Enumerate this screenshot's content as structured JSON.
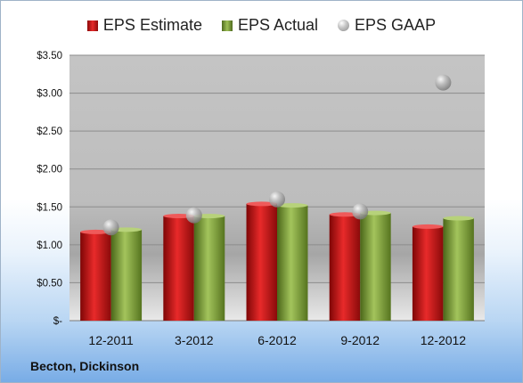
{
  "company": "Becton, Dickinson",
  "colors": {
    "estimate": "#c41a1a",
    "actual": "#7b9c3a",
    "gaap": "#a9a9a9"
  },
  "chart_data": {
    "type": "bar",
    "title": "",
    "xlabel": "",
    "ylabel": "",
    "categories": [
      "12-2011",
      "3-2012",
      "6-2012",
      "9-2012",
      "12-2012"
    ],
    "series": [
      {
        "name": "EPS Estimate",
        "kind": "bar",
        "values": [
          1.17,
          1.38,
          1.54,
          1.4,
          1.24
        ]
      },
      {
        "name": "EPS Actual",
        "kind": "bar",
        "values": [
          1.2,
          1.38,
          1.52,
          1.42,
          1.35
        ]
      },
      {
        "name": "EPS GAAP",
        "kind": "marker",
        "values": [
          1.23,
          1.39,
          1.6,
          1.44,
          3.14
        ]
      }
    ],
    "ylim": [
      0,
      3.5
    ],
    "yticks": [
      "$-",
      "$0.50",
      "$1.00",
      "$1.50",
      "$2.00",
      "$2.50",
      "$3.00",
      "$3.50"
    ],
    "ytick_values": [
      0,
      0.5,
      1.0,
      1.5,
      2.0,
      2.5,
      3.0,
      3.5
    ],
    "grid": true,
    "legend_position": "top-center"
  }
}
